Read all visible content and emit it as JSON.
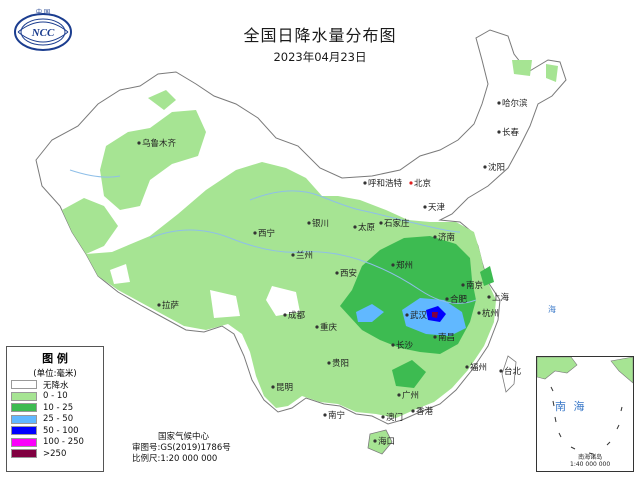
{
  "title": "全国日降水量分布图",
  "date": "2023年04月23日",
  "logo": {
    "top_text": "中 国",
    "emblem": "NCC"
  },
  "colors": {
    "none": "#ffffff",
    "light": "#a6e493",
    "moderate": "#3dbb51",
    "heavy": "#61b8ff",
    "storm": "#0000ff",
    "big_storm": "#fa00fa",
    "extreme": "#800040",
    "border": "#7a7a7a",
    "river": "#8fbfe8",
    "sea_text": "#3a78c8"
  },
  "legend": {
    "heading": "图 例",
    "unit": "(单位:毫米)",
    "items": [
      {
        "label": "无降水",
        "color": "#ffffff"
      },
      {
        "label": "0 - 10",
        "color": "#a6e493"
      },
      {
        "label": "10 - 25",
        "color": "#3dbb51"
      },
      {
        "label": "25 - 50",
        "color": "#61b8ff"
      },
      {
        "label": "50 - 100",
        "color": "#0000ff"
      },
      {
        "label": "100 - 250",
        "color": "#fa00fa"
      },
      {
        "label": ">250",
        "color": "#800040"
      }
    ]
  },
  "credits": {
    "org": "国家气候中心",
    "review": "审图号:GS(2019)1786号",
    "scale": "比例尺:1:20 000 000"
  },
  "inset": {
    "sea_name": "南 海",
    "caption_line1": "南海诸岛",
    "caption_line2": "1:40 000 000"
  },
  "cities": [
    {
      "name": "乌鲁木齐"
    },
    {
      "name": "哈尔滨"
    },
    {
      "name": "长春"
    },
    {
      "name": "沈阳"
    },
    {
      "name": "呼和浩特"
    },
    {
      "name": "北京"
    },
    {
      "name": "天津"
    },
    {
      "name": "石家庄"
    },
    {
      "name": "太原"
    },
    {
      "name": "济南"
    },
    {
      "name": "银川"
    },
    {
      "name": "西宁"
    },
    {
      "name": "兰州"
    },
    {
      "name": "西安"
    },
    {
      "name": "郑州"
    },
    {
      "name": "南京"
    },
    {
      "name": "上海"
    },
    {
      "name": "合肥"
    },
    {
      "name": "杭州"
    },
    {
      "name": "武汉"
    },
    {
      "name": "成都"
    },
    {
      "name": "重庆"
    },
    {
      "name": "拉萨"
    },
    {
      "name": "长沙"
    },
    {
      "name": "南昌"
    },
    {
      "name": "福州"
    },
    {
      "name": "台北"
    },
    {
      "name": "贵阳"
    },
    {
      "name": "昆明"
    },
    {
      "name": "南宁"
    },
    {
      "name": "广州"
    },
    {
      "name": "澳门"
    },
    {
      "name": "香港"
    },
    {
      "name": "海口"
    }
  ]
}
